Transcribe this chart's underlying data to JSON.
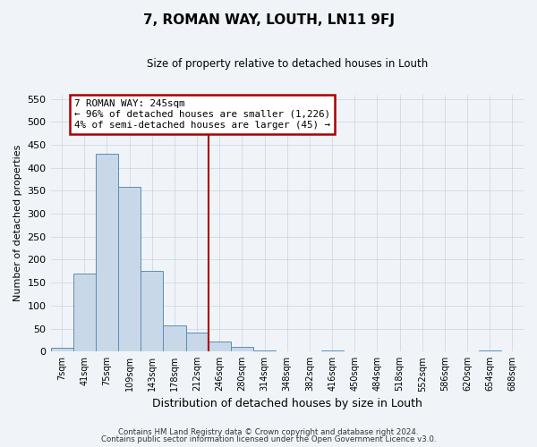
{
  "title": "7, ROMAN WAY, LOUTH, LN11 9FJ",
  "subtitle": "Size of property relative to detached houses in Louth",
  "xlabel": "Distribution of detached houses by size in Louth",
  "ylabel": "Number of detached properties",
  "bar_labels": [
    "7sqm",
    "41sqm",
    "75sqm",
    "109sqm",
    "143sqm",
    "178sqm",
    "212sqm",
    "246sqm",
    "280sqm",
    "314sqm",
    "348sqm",
    "382sqm",
    "416sqm",
    "450sqm",
    "484sqm",
    "518sqm",
    "552sqm",
    "586sqm",
    "620sqm",
    "654sqm",
    "688sqm"
  ],
  "bar_values": [
    8,
    170,
    430,
    358,
    175,
    57,
    41,
    21,
    10,
    2,
    0,
    0,
    3,
    0,
    0,
    0,
    0,
    0,
    0,
    2,
    0
  ],
  "bar_color": "#c8d8e8",
  "bar_edge_color": "#5b8db8",
  "vline_x_idx": 7,
  "vline_color": "#aa0000",
  "ylim": [
    0,
    560
  ],
  "yticks": [
    0,
    50,
    100,
    150,
    200,
    250,
    300,
    350,
    400,
    450,
    500,
    550
  ],
  "annotation_title": "7 ROMAN WAY: 245sqm",
  "annotation_line1": "← 96% of detached houses are smaller (1,226)",
  "annotation_line2": "4% of semi-detached houses are larger (45) →",
  "annotation_box_color": "#ffffff",
  "annotation_box_edge": "#aa0000",
  "footer1": "Contains HM Land Registry data © Crown copyright and database right 2024.",
  "footer2": "Contains public sector information licensed under the Open Government Licence v3.0.",
  "bg_color": "#f0f4f8",
  "plot_bg_color": "#f0f4f8",
  "grid_color": "#c8d4e0"
}
